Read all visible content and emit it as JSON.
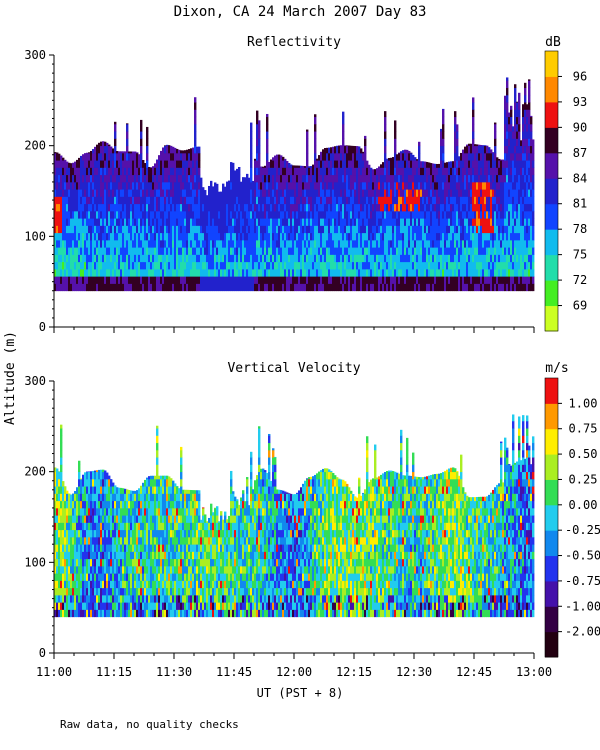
{
  "title": "Dixon, CA 24 March 2007  Day  83",
  "footnote": "Raw data, no quality checks",
  "chart_data": [
    {
      "type": "heatmap",
      "title": "Reflectivity",
      "xlabel": "UT  (PST + 8)",
      "ylabel": "Altitude (m)",
      "x_ticks": [
        "11:00",
        "11:15",
        "11:30",
        "11:45",
        "12:00",
        "12:15",
        "12:30",
        "12:45",
        "13:00"
      ],
      "xlim_minutes": [
        0,
        120
      ],
      "ylim": [
        0,
        300
      ],
      "y_ticks": [
        0,
        100,
        200,
        300
      ],
      "data_altitude_range": [
        40,
        280
      ],
      "colorbar": {
        "unit": "dB",
        "ticks": [
          "69",
          "72",
          "75",
          "78",
          "81",
          "84",
          "87",
          "90",
          "93",
          "96"
        ],
        "colors": [
          "#ccff22",
          "#44ee22",
          "#22ddaa",
          "#11bbee",
          "#1144ff",
          "#2222cc",
          "#5511aa",
          "#330022",
          "#ee1111",
          "#ff8800",
          "#ffcc00"
        ]
      },
      "features": [
        "gap near 11:45",
        "strong echoes (87-93 dB) at 11:00-11:02, 12:22-12:30 and 12:45-12:50 between 110-160 m"
      ]
    },
    {
      "type": "heatmap",
      "title": "Vertical Velocity",
      "xlabel": "UT  (PST + 8)",
      "ylabel": "Altitude (m)",
      "x_ticks": [
        "11:00",
        "11:15",
        "11:30",
        "11:45",
        "12:00",
        "12:15",
        "12:30",
        "12:45",
        "13:00"
      ],
      "xlim_minutes": [
        0,
        120
      ],
      "ylim": [
        0,
        300
      ],
      "y_ticks": [
        0,
        100,
        200,
        300
      ],
      "data_altitude_range": [
        40,
        280
      ],
      "colorbar": {
        "unit": "m/s",
        "ticks": [
          "-2.00",
          "-1.00",
          "-0.75",
          "-0.50",
          "-0.25",
          "0.00",
          "0.25",
          "0.50",
          "0.75",
          "1.00"
        ],
        "colors": [
          "#220011",
          "#330044",
          "#4411aa",
          "#2233ee",
          "#1188ee",
          "#22ccee",
          "#33dd55",
          "#aaee22",
          "#ffee00",
          "#ff9900",
          "#ee1111"
        ]
      },
      "features": [
        "mostly -0.5 to +0.5 m/s",
        "gap near 11:45"
      ]
    }
  ]
}
